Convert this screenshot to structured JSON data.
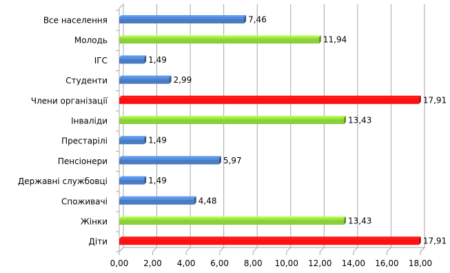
{
  "chart_data": {
    "type": "bar",
    "orientation": "horizontal",
    "title": "",
    "xlabel": "",
    "ylabel": "",
    "categories": [
      "Все населення",
      "Молодь",
      "ІГС",
      "Студенти",
      "Члени організації",
      "Інваліди",
      "Престарілі",
      "Пенсіонери",
      "Державні службовці",
      "Споживачі",
      "Жінки",
      "Діти"
    ],
    "values": [
      7.46,
      11.94,
      1.49,
      2.99,
      17.91,
      13.43,
      1.49,
      5.97,
      1.49,
      4.48,
      13.43,
      17.91
    ],
    "value_labels": [
      "7,46",
      "11,94",
      "1,49",
      "2,99",
      "17,91",
      "13,43",
      "1,49",
      "5,97",
      "1,49",
      "4,48",
      "13,43",
      "17,91"
    ],
    "bar_colors": [
      "#4a7cc4",
      "#8ccf3c",
      "#4a7cc4",
      "#4a7cc4",
      "#ff1010",
      "#8ccf3c",
      "#4a7cc4",
      "#4a7cc4",
      "#4a7cc4",
      "#4a7cc4",
      "#8ccf3c",
      "#ff1010"
    ],
    "xlim": [
      0,
      18
    ],
    "ticks": [
      0,
      2,
      4,
      6,
      8,
      10,
      12,
      14,
      16,
      18
    ],
    "tick_labels": [
      "0,00",
      "2,00",
      "4,00",
      "6,00",
      "8,00",
      "10,00",
      "12,00",
      "14,00",
      "16,00",
      "18,00"
    ],
    "grid": true,
    "legend": "none"
  }
}
